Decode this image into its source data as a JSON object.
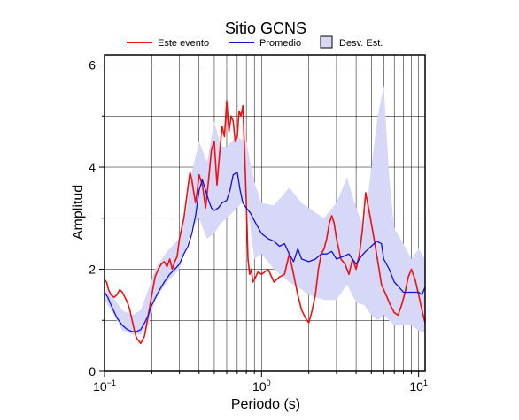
{
  "chart_data": {
    "type": "line",
    "title": "Sitio GCNS",
    "xlabel": "Periodo (s)",
    "ylabel": "Amplitud",
    "xscale": "log",
    "xlim": [
      0.1,
      11
    ],
    "ylim": [
      0,
      6.2
    ],
    "grid": true,
    "legend_placement": "top",
    "x_ticks": [
      {
        "value": 0.1,
        "base": "10",
        "exp": "−1"
      },
      {
        "value": 1,
        "base": "10",
        "exp": "0"
      },
      {
        "value": 10,
        "base": "10",
        "exp": "1"
      }
    ],
    "y_ticks": [
      {
        "value": 0,
        "label": "0"
      },
      {
        "value": 2,
        "label": "2"
      },
      {
        "value": 4,
        "label": "4"
      },
      {
        "value": 6,
        "label": "6"
      }
    ],
    "legend": {
      "event": "Este evento",
      "mean": "Promedio",
      "band": "Desv. Est."
    },
    "colors": {
      "event": "#ee1111",
      "mean": "#1111dd",
      "band": "#d7d7f7",
      "band_edge": "#000000"
    },
    "band": {
      "x": [
        0.1,
        0.11,
        0.12,
        0.13,
        0.15,
        0.17,
        0.19,
        0.21,
        0.25,
        0.3,
        0.33,
        0.36,
        0.4,
        0.45,
        0.5,
        0.55,
        0.6,
        0.7,
        0.8,
        0.9,
        1.0,
        1.2,
        1.5,
        1.8,
        2.0,
        2.5,
        3.0,
        3.5,
        4.0,
        4.5,
        5.0,
        5.5,
        6.0,
        6.5,
        7.0,
        8.0,
        9.0,
        10.0,
        11.0
      ],
      "upper": [
        1.6,
        1.5,
        1.35,
        1.2,
        1.1,
        1.2,
        1.6,
        2.0,
        2.35,
        2.6,
        3.1,
        3.9,
        4.5,
        4.1,
        4.9,
        4.4,
        4.4,
        4.6,
        4.5,
        3.7,
        3.3,
        3.25,
        3.6,
        3.3,
        3.2,
        3.0,
        3.3,
        3.8,
        3.2,
        2.8,
        4.0,
        5.0,
        5.6,
        3.8,
        2.8,
        2.5,
        2.2,
        2.4,
        2.2
      ],
      "lower": [
        1.4,
        1.2,
        1.0,
        0.8,
        0.72,
        0.72,
        0.9,
        1.4,
        1.75,
        2.0,
        2.4,
        2.8,
        3.0,
        2.6,
        2.7,
        2.9,
        3.0,
        3.2,
        3.4,
        2.2,
        2.3,
        2.0,
        1.75,
        1.6,
        1.5,
        1.4,
        1.4,
        1.7,
        1.35,
        1.3,
        1.1,
        1.0,
        1.1,
        1.0,
        0.9,
        0.9,
        0.9,
        0.8,
        0.75
      ]
    },
    "series": [
      {
        "name": "Este evento",
        "x": [
          0.1,
          0.103,
          0.106,
          0.11,
          0.115,
          0.12,
          0.125,
          0.13,
          0.135,
          0.14,
          0.145,
          0.15,
          0.155,
          0.16,
          0.165,
          0.17,
          0.175,
          0.18,
          0.19,
          0.2,
          0.21,
          0.22,
          0.23,
          0.24,
          0.25,
          0.26,
          0.27,
          0.28,
          0.29,
          0.3,
          0.31,
          0.32,
          0.33,
          0.34,
          0.35,
          0.36,
          0.37,
          0.38,
          0.39,
          0.4,
          0.42,
          0.44,
          0.46,
          0.48,
          0.5,
          0.52,
          0.54,
          0.56,
          0.58,
          0.6,
          0.62,
          0.64,
          0.66,
          0.68,
          0.7,
          0.72,
          0.74,
          0.76,
          0.78,
          0.8,
          0.82,
          0.84,
          0.86,
          0.88,
          0.9,
          0.95,
          1.0,
          1.1,
          1.2,
          1.3,
          1.4,
          1.5,
          1.6,
          1.7,
          1.8,
          1.9,
          2.0,
          2.1,
          2.2,
          2.3,
          2.4,
          2.5,
          2.6,
          2.7,
          2.8,
          2.9,
          3.0,
          3.2,
          3.4,
          3.6,
          3.8,
          4.0,
          4.2,
          4.4,
          4.6,
          4.8,
          5.0,
          5.2,
          5.4,
          5.6,
          5.8,
          6.0,
          6.3,
          6.6,
          7.0,
          7.4,
          7.8,
          8.2,
          8.6,
          9.0,
          9.5,
          10.0,
          10.5,
          11.0
        ],
        "y": [
          1.8,
          1.75,
          1.6,
          1.5,
          1.45,
          1.5,
          1.6,
          1.55,
          1.45,
          1.35,
          1.2,
          1.0,
          0.8,
          0.65,
          0.6,
          0.55,
          0.62,
          0.7,
          1.1,
          1.5,
          1.85,
          2.0,
          2.1,
          2.15,
          2.05,
          2.2,
          2.0,
          2.15,
          2.25,
          2.6,
          2.8,
          3.0,
          3.3,
          3.6,
          3.9,
          3.75,
          3.5,
          3.3,
          3.55,
          3.85,
          3.65,
          3.2,
          3.75,
          4.35,
          4.5,
          3.65,
          4.25,
          4.8,
          4.6,
          5.3,
          4.7,
          5.0,
          4.9,
          4.5,
          4.6,
          5.1,
          5.0,
          5.2,
          4.3,
          3.3,
          2.2,
          1.9,
          2.0,
          1.75,
          1.8,
          1.95,
          1.9,
          2.0,
          1.75,
          1.85,
          1.9,
          2.3,
          1.9,
          1.5,
          1.2,
          1.05,
          0.95,
          1.2,
          1.5,
          2.0,
          2.3,
          2.4,
          2.6,
          2.9,
          3.05,
          2.9,
          2.6,
          2.2,
          2.1,
          1.9,
          2.2,
          2.0,
          2.3,
          2.8,
          3.5,
          3.2,
          2.9,
          2.6,
          2.3,
          2.0,
          1.7,
          1.6,
          1.45,
          1.3,
          1.15,
          1.1,
          1.3,
          1.55,
          1.85,
          2.0,
          1.8,
          1.5,
          1.2,
          0.95
        ]
      },
      {
        "name": "Promedio",
        "x": [
          0.1,
          0.105,
          0.11,
          0.12,
          0.13,
          0.14,
          0.15,
          0.16,
          0.17,
          0.18,
          0.19,
          0.2,
          0.22,
          0.24,
          0.26,
          0.28,
          0.3,
          0.32,
          0.34,
          0.36,
          0.38,
          0.4,
          0.42,
          0.44,
          0.46,
          0.48,
          0.5,
          0.53,
          0.56,
          0.6,
          0.63,
          0.66,
          0.7,
          0.73,
          0.76,
          0.8,
          0.85,
          0.9,
          1.0,
          1.1,
          1.2,
          1.3,
          1.4,
          1.5,
          1.6,
          1.7,
          1.8,
          2.0,
          2.2,
          2.4,
          2.6,
          2.8,
          3.0,
          3.3,
          3.6,
          4.0,
          4.3,
          4.6,
          5.0,
          5.4,
          5.8,
          6.0,
          6.5,
          7.0,
          7.5,
          8.0,
          9.0,
          10.0,
          10.5,
          11.0
        ],
        "y": [
          1.55,
          1.45,
          1.3,
          1.05,
          0.9,
          0.82,
          0.78,
          0.78,
          0.82,
          0.95,
          1.1,
          1.3,
          1.55,
          1.75,
          1.9,
          2.0,
          2.1,
          2.3,
          2.45,
          2.7,
          3.05,
          3.55,
          3.75,
          3.55,
          3.35,
          3.2,
          3.15,
          3.2,
          3.3,
          3.35,
          3.55,
          3.85,
          3.9,
          3.55,
          3.3,
          3.2,
          3.1,
          2.95,
          2.7,
          2.6,
          2.55,
          2.45,
          2.5,
          2.3,
          2.15,
          2.4,
          2.2,
          2.15,
          2.2,
          2.3,
          2.3,
          2.35,
          2.2,
          2.25,
          2.3,
          2.1,
          2.25,
          2.35,
          2.45,
          2.55,
          2.5,
          2.2,
          2.0,
          1.75,
          1.65,
          1.55,
          1.55,
          1.55,
          1.5,
          1.65
        ]
      }
    ]
  }
}
